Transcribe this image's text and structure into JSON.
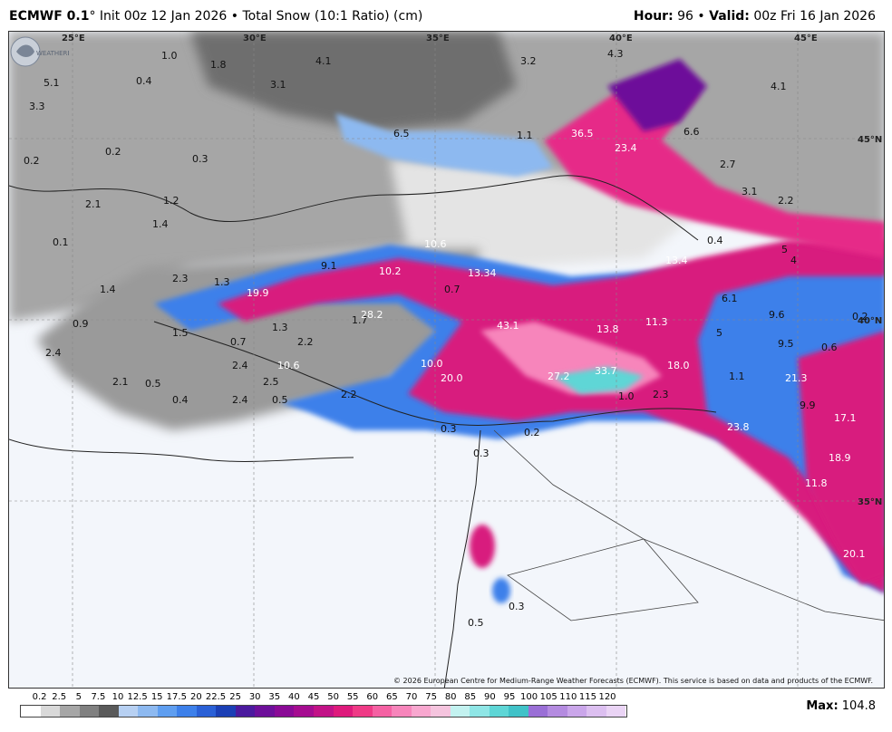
{
  "header": {
    "model": "ECMWF 0.1",
    "degree": "°",
    "init": "Init 00z 12 Jan 2026",
    "bullet": "•",
    "product": "Total Snow (10:1 Ratio) (cm)",
    "hour_label": "Hour:",
    "hour_value": "96",
    "valid_label": "Valid:",
    "valid_value": "00z Fri 16 Jan 2026"
  },
  "map": {
    "lon_labels": [
      "25°E",
      "30°E",
      "35°E",
      "40°E",
      "45°E"
    ],
    "lat_labels": [
      "45°N",
      "40°N",
      "35°N"
    ],
    "snow_values": [
      "5.1",
      "1.0",
      "1.8",
      "4.1",
      "3.1",
      "3.2",
      "4.3",
      "4.1",
      "3.3",
      "0.4",
      "0.2",
      "0.2",
      "0.3",
      "6.5",
      "1.1",
      "36.5",
      "23.4",
      "6.6",
      "2.7",
      "2.1",
      "1.2",
      "1.4",
      "3.1",
      "2.2",
      "0.1",
      "10.6",
      "0.4",
      "5",
      "4",
      "2.3",
      "9.1",
      "10.2",
      "13.34",
      "13.4",
      "1.4",
      "1.3",
      "19.9",
      "0.7",
      "6.1",
      "9.6",
      "0.2",
      "0.9",
      "1.5",
      "1.3",
      "1.7",
      "28.2",
      "43.1",
      "13.8",
      "11.3",
      "5",
      "9.5",
      "0.6",
      "2.2",
      "0.7",
      "2.4",
      "2.4",
      "10.6",
      "10.0",
      "20.0",
      "27.2",
      "33.7",
      "18.0",
      "1.1",
      "2.1",
      "0.5",
      "2.5",
      "21.3",
      "0.4",
      "2.4",
      "0.5",
      "2.2",
      "1.0",
      "2.3",
      "9.9",
      "17.1",
      "0.3",
      "0.2",
      "23.8",
      "0.3",
      "18.9",
      "11.8",
      "20.1",
      "0.3",
      "0.5"
    ],
    "credit": "© 2026 European Centre for Medium-Range Weather Forecasts (ECMWF). This service is based on data and products of the ECMWF.",
    "logo_text": "WEATHERBELL"
  },
  "legend": {
    "ticks": [
      "0.2",
      "2.5",
      "5",
      "7.5",
      "10",
      "12.5",
      "15",
      "17.5",
      "20",
      "22.5",
      "25",
      "30",
      "35",
      "40",
      "45",
      "50",
      "55",
      "60",
      "65",
      "70",
      "75",
      "80",
      "85",
      "90",
      "95",
      "100",
      "105",
      "110",
      "115",
      "120"
    ],
    "colors": [
      "#ffffff",
      "#d9d9d9",
      "#a6a6a6",
      "#808080",
      "#5a5a5a",
      "#b7d0f2",
      "#8db9f0",
      "#5f9ef0",
      "#3d80ea",
      "#2a60d6",
      "#1b3fb5",
      "#4b1a9e",
      "#6d0f9a",
      "#8a0a96",
      "#a50c90",
      "#c21287",
      "#de1a7c",
      "#ef3a86",
      "#f561a3",
      "#f785bb",
      "#f8a7cf",
      "#f5c4de",
      "#c3f2f0",
      "#8fe6e6",
      "#5ed6d6",
      "#40c2c8",
      "#9a6fd6",
      "#b48be0",
      "#caa6ea",
      "#dcbff0",
      "#ead4f5"
    ],
    "max_label": "Max:",
    "max_value": "104.8"
  }
}
